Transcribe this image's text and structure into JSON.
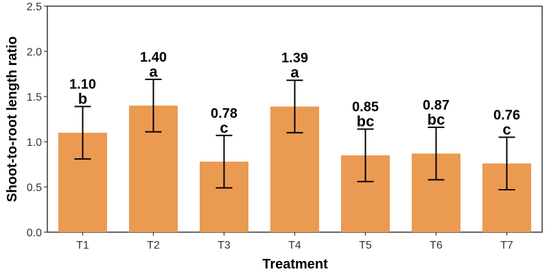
{
  "chart_data": {
    "type": "bar",
    "title": "",
    "xlabel": "Treatment",
    "ylabel": "Shoot-to-root length ratio",
    "ylim": [
      0,
      2.5
    ],
    "yticks": [
      "0.0",
      "0.5",
      "1.0",
      "1.5",
      "2.0",
      "2.5"
    ],
    "categories": [
      "T1",
      "T2",
      "T3",
      "T4",
      "T5",
      "T6",
      "T7"
    ],
    "values": [
      1.1,
      1.4,
      0.78,
      1.39,
      0.85,
      0.87,
      0.76
    ],
    "errors": [
      0.29,
      0.29,
      0.29,
      0.29,
      0.29,
      0.29,
      0.29
    ],
    "value_labels": [
      "1.10",
      "1.40",
      "0.78",
      "1.39",
      "0.85",
      "0.87",
      "0.76"
    ],
    "group_letters": [
      "b",
      "a",
      "c",
      "a",
      "bc",
      "bc",
      "c"
    ],
    "bar_color": "#EB9A52",
    "grid": false
  }
}
